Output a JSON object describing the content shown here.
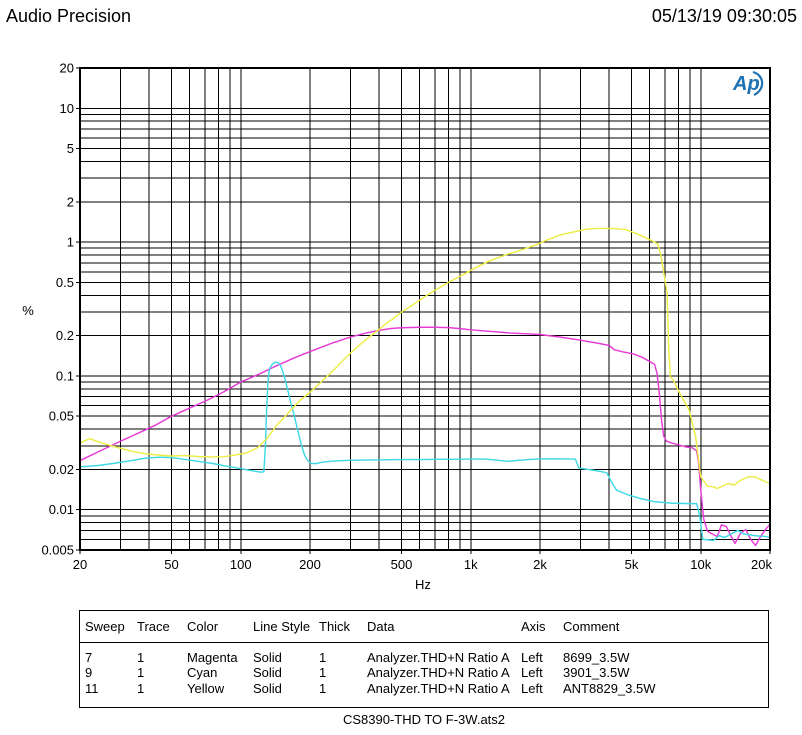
{
  "header": {
    "app_title": "Audio Precision",
    "timestamp": "05/13/19 09:30:05"
  },
  "logo": {
    "text": "Ap",
    "color": "#1E72B4"
  },
  "caption": "CS8390-THD TO F-3W.ats2",
  "legend_table": {
    "headers": [
      "Sweep",
      "Trace",
      "Color",
      "Line Style",
      "Thick",
      "Data",
      "Axis",
      "Comment"
    ],
    "rows": [
      [
        "7",
        "1",
        "Magenta",
        "Solid",
        "1",
        "Analyzer.THD+N Ratio A",
        "Left",
        "8699_3.5W"
      ],
      [
        "9",
        "1",
        "Cyan",
        "Solid",
        "1",
        "Analyzer.THD+N Ratio A",
        "Left",
        "3901_3.5W"
      ],
      [
        "11",
        "1",
        "Yellow",
        "Solid",
        "1",
        "Analyzer.THD+N Ratio A",
        "Left",
        "ANT8829_3.5W"
      ]
    ]
  },
  "chart_data": {
    "type": "line",
    "x_scale": "log",
    "y_scale": "log",
    "xlim": [
      20,
      20000
    ],
    "ylim": [
      0.005,
      20
    ],
    "xlabel": "Hz",
    "ylabel": "%",
    "grid": true,
    "x_tick_labels": [
      [
        20,
        "20"
      ],
      [
        50,
        "50"
      ],
      [
        100,
        "100"
      ],
      [
        200,
        "200"
      ],
      [
        500,
        "500"
      ],
      [
        1000,
        "1k"
      ],
      [
        2000,
        "2k"
      ],
      [
        5000,
        "5k"
      ],
      [
        10000,
        "10k"
      ],
      [
        20000,
        "20k"
      ]
    ],
    "y_tick_labels": [
      [
        20,
        "20"
      ],
      [
        10,
        "10"
      ],
      [
        5,
        "5"
      ],
      [
        2,
        "2"
      ],
      [
        1,
        "1"
      ],
      [
        0.5,
        "0.5"
      ],
      [
        0.2,
        "0.2"
      ],
      [
        0.1,
        "0.1"
      ],
      [
        0.05,
        "0.05"
      ],
      [
        0.02,
        "0.02"
      ],
      [
        0.01,
        "0.01"
      ],
      [
        0.005,
        "0.005"
      ]
    ],
    "series": [
      {
        "name": "8699_3.5W",
        "color_name": "Magenta",
        "color": "#E63BD6",
        "points": [
          [
            20,
            0.0233
          ],
          [
            25,
            0.028
          ],
          [
            30,
            0.0325
          ],
          [
            36,
            0.0375
          ],
          [
            43,
            0.0432
          ],
          [
            50,
            0.05
          ],
          [
            60,
            0.0575
          ],
          [
            72,
            0.0662
          ],
          [
            85,
            0.0765
          ],
          [
            100,
            0.09
          ],
          [
            120,
            0.103
          ],
          [
            140,
            0.117
          ],
          [
            170,
            0.136
          ],
          [
            200,
            0.152
          ],
          [
            250,
            0.176
          ],
          [
            300,
            0.195
          ],
          [
            350,
            0.209
          ],
          [
            400,
            0.219
          ],
          [
            450,
            0.226
          ],
          [
            500,
            0.229
          ],
          [
            600,
            0.231
          ],
          [
            700,
            0.231
          ],
          [
            800,
            0.2295
          ],
          [
            900,
            0.2255
          ],
          [
            1000,
            0.221
          ],
          [
            1200,
            0.2155
          ],
          [
            1500,
            0.209
          ],
          [
            2000,
            0.204
          ],
          [
            2500,
            0.194
          ],
          [
            3000,
            0.185
          ],
          [
            3600,
            0.175
          ],
          [
            4000,
            0.169
          ],
          [
            4200,
            0.157
          ],
          [
            4600,
            0.151
          ],
          [
            5100,
            0.146
          ],
          [
            5600,
            0.137
          ],
          [
            6000,
            0.128
          ],
          [
            6300,
            0.122
          ],
          [
            6450,
            0.105
          ],
          [
            6600,
            0.075
          ],
          [
            6750,
            0.047
          ],
          [
            6900,
            0.0355
          ],
          [
            7100,
            0.0325
          ],
          [
            7500,
            0.0315
          ],
          [
            8000,
            0.0305
          ],
          [
            8600,
            0.0295
          ],
          [
            9200,
            0.029
          ],
          [
            9600,
            0.0275
          ],
          [
            9800,
            0.022
          ],
          [
            10000,
            0.014
          ],
          [
            10300,
            0.0085
          ],
          [
            10700,
            0.0069
          ],
          [
            11200,
            0.0066
          ],
          [
            11800,
            0.0063
          ],
          [
            12300,
            0.0077
          ],
          [
            12900,
            0.0075
          ],
          [
            13500,
            0.0064
          ],
          [
            14100,
            0.0056
          ],
          [
            14900,
            0.0067
          ],
          [
            15700,
            0.0071
          ],
          [
            16500,
            0.006
          ],
          [
            17300,
            0.0054
          ],
          [
            18200,
            0.0063
          ],
          [
            19100,
            0.0071
          ],
          [
            20000,
            0.0078
          ]
        ]
      },
      {
        "name": "3901_3.5W",
        "color_name": "Cyan",
        "color": "#3FD9E6",
        "points": [
          [
            20,
            0.0209
          ],
          [
            24,
            0.0214
          ],
          [
            28,
            0.0222
          ],
          [
            33,
            0.0232
          ],
          [
            38,
            0.0242
          ],
          [
            44,
            0.0247
          ],
          [
            50,
            0.0245
          ],
          [
            57,
            0.0238
          ],
          [
            65,
            0.023
          ],
          [
            75,
            0.0222
          ],
          [
            85,
            0.0213
          ],
          [
            95,
            0.0206
          ],
          [
            106,
            0.0199
          ],
          [
            115,
            0.0194
          ],
          [
            122,
            0.0191
          ],
          [
            126,
            0.0192
          ],
          [
            128,
            0.03
          ],
          [
            129.5,
            0.055
          ],
          [
            131,
            0.085
          ],
          [
            132.5,
            0.105
          ],
          [
            134,
            0.115
          ],
          [
            137,
            0.122
          ],
          [
            140,
            0.1255
          ],
          [
            143,
            0.1265
          ],
          [
            146,
            0.125
          ],
          [
            149,
            0.119
          ],
          [
            152,
            0.109
          ],
          [
            156,
            0.094
          ],
          [
            160,
            0.079
          ],
          [
            165,
            0.063
          ],
          [
            170,
            0.052
          ],
          [
            175,
            0.0425
          ],
          [
            180,
            0.0345
          ],
          [
            185,
            0.029
          ],
          [
            190,
            0.0253
          ],
          [
            196,
            0.0231
          ],
          [
            203,
            0.0222
          ],
          [
            212,
            0.0221
          ],
          [
            225,
            0.0226
          ],
          [
            250,
            0.0231
          ],
          [
            300,
            0.0234
          ],
          [
            400,
            0.0236
          ],
          [
            500,
            0.0237
          ],
          [
            600,
            0.0237
          ],
          [
            700,
            0.0238
          ],
          [
            800,
            0.0238
          ],
          [
            1000,
            0.0239
          ],
          [
            1160,
            0.0239
          ],
          [
            1440,
            0.023
          ],
          [
            1770,
            0.0237
          ],
          [
            2000,
            0.024
          ],
          [
            2400,
            0.024
          ],
          [
            2850,
            0.0239
          ],
          [
            2950,
            0.0205
          ],
          [
            3430,
            0.0197
          ],
          [
            3900,
            0.0189
          ],
          [
            4100,
            0.016
          ],
          [
            4300,
            0.014
          ],
          [
            4900,
            0.0128
          ],
          [
            5500,
            0.0121
          ],
          [
            6250,
            0.0115
          ],
          [
            7450,
            0.0112
          ],
          [
            8900,
            0.0111
          ],
          [
            9600,
            0.0111
          ],
          [
            9900,
            0.009
          ],
          [
            10200,
            0.006
          ],
          [
            11400,
            0.0059
          ],
          [
            12000,
            0.0064
          ],
          [
            12700,
            0.0062
          ],
          [
            14500,
            0.007
          ],
          [
            15300,
            0.0066
          ],
          [
            17200,
            0.0064
          ],
          [
            19200,
            0.0063
          ],
          [
            20000,
            0.0062
          ]
        ]
      },
      {
        "name": "ANT8829_3.5W",
        "color_name": "Yellow",
        "color": "#EDED45",
        "points": [
          [
            20,
            0.0315
          ],
          [
            22,
            0.034
          ],
          [
            24,
            0.0322
          ],
          [
            27,
            0.0302
          ],
          [
            30,
            0.0288
          ],
          [
            34,
            0.0272
          ],
          [
            38,
            0.0263
          ],
          [
            43,
            0.0257
          ],
          [
            50,
            0.0252
          ],
          [
            57,
            0.0254
          ],
          [
            65,
            0.025
          ],
          [
            75,
            0.0248
          ],
          [
            85,
            0.0249
          ],
          [
            93,
            0.0255
          ],
          [
            106,
            0.0266
          ],
          [
            118,
            0.029
          ],
          [
            130,
            0.034
          ],
          [
            143,
            0.0425
          ],
          [
            160,
            0.0525
          ],
          [
            180,
            0.065
          ],
          [
            200,
            0.0755
          ],
          [
            222,
            0.089
          ],
          [
            250,
            0.108
          ],
          [
            280,
            0.132
          ],
          [
            300,
            0.148
          ],
          [
            330,
            0.171
          ],
          [
            360,
            0.194
          ],
          [
            395,
            0.219
          ],
          [
            430,
            0.247
          ],
          [
            460,
            0.268
          ],
          [
            500,
            0.3
          ],
          [
            560,
            0.34
          ],
          [
            630,
            0.39
          ],
          [
            700,
            0.437
          ],
          [
            800,
            0.5
          ],
          [
            900,
            0.556
          ],
          [
            1026,
            0.63
          ],
          [
            1200,
            0.72
          ],
          [
            1440,
            0.81
          ],
          [
            1680,
            0.88
          ],
          [
            1880,
            0.94
          ],
          [
            2100,
            1.02
          ],
          [
            2440,
            1.13
          ],
          [
            2984,
            1.22
          ],
          [
            3200,
            1.25
          ],
          [
            3500,
            1.265
          ],
          [
            3900,
            1.265
          ],
          [
            4300,
            1.26
          ],
          [
            4700,
            1.24
          ],
          [
            5240,
            1.16
          ],
          [
            6010,
            1.04
          ],
          [
            6500,
            0.97
          ],
          [
            6700,
            0.8
          ],
          [
            6900,
            0.6
          ],
          [
            7140,
            0.412
          ],
          [
            7260,
            0.155
          ],
          [
            7380,
            0.098
          ],
          [
            7600,
            0.093
          ],
          [
            8100,
            0.0742
          ],
          [
            8900,
            0.0556
          ],
          [
            9500,
            0.0352
          ],
          [
            10000,
            0.0176
          ],
          [
            10700,
            0.015
          ],
          [
            11400,
            0.0148
          ],
          [
            11800,
            0.0144
          ],
          [
            13100,
            0.0157
          ],
          [
            14000,
            0.0153
          ],
          [
            14800,
            0.0165
          ],
          [
            16100,
            0.0176
          ],
          [
            17200,
            0.0176
          ],
          [
            18600,
            0.0165
          ],
          [
            19900,
            0.0157
          ],
          [
            20000,
            0.0158
          ]
        ]
      }
    ]
  }
}
